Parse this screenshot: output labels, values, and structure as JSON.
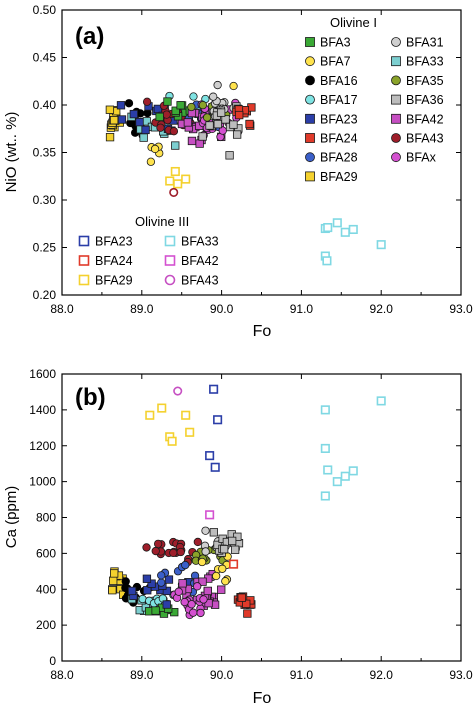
{
  "chart_data": [
    {
      "panel": "(a)",
      "type": "scatter",
      "xlabel": "Fo",
      "ylabel": "NiO (wt.. %)",
      "xlim": [
        88.0,
        93.0
      ],
      "ylim": [
        0.2,
        0.5
      ],
      "xticks": [
        "88.0",
        "89.0",
        "90.0",
        "91.0",
        "92.0",
        "93.0"
      ],
      "yticks": [
        "0.20",
        "0.25",
        "0.30",
        "0.35",
        "0.40",
        "0.45",
        "0.50"
      ],
      "legend_groups": [
        {
          "title": "Olivine I",
          "placement": "top-right",
          "entries": [
            {
              "name": "BFA3",
              "marker": "square",
              "fill": "#3aa935",
              "stroke": "#1a1a1a"
            },
            {
              "name": "BFA7",
              "marker": "circle",
              "fill": "#ffe34d",
              "stroke": "#1a1a1a"
            },
            {
              "name": "BFA16",
              "marker": "circle",
              "fill": "#000000",
              "stroke": "#000000"
            },
            {
              "name": "BFA17",
              "marker": "circle",
              "fill": "#7fe3e3",
              "stroke": "#1a1a1a"
            },
            {
              "name": "BFA23",
              "marker": "square",
              "fill": "#2b3ea8",
              "stroke": "#1a1a1a"
            },
            {
              "name": "BFA24",
              "marker": "square",
              "fill": "#e03a2a",
              "stroke": "#1a1a1a"
            },
            {
              "name": "BFA28",
              "marker": "circle",
              "fill": "#3b5fc9",
              "stroke": "#1a1a1a"
            },
            {
              "name": "BFA29",
              "marker": "square",
              "fill": "#f4d12e",
              "stroke": "#1a1a1a"
            },
            {
              "name": "BFA31",
              "marker": "circle",
              "fill": "#cfcfcf",
              "stroke": "#1a1a1a"
            },
            {
              "name": "BFA33",
              "marker": "square",
              "fill": "#7ccfd0",
              "stroke": "#1a1a1a"
            },
            {
              "name": "BFA35",
              "marker": "circle",
              "fill": "#8aa32a",
              "stroke": "#1a1a1a"
            },
            {
              "name": "BFA36",
              "marker": "square",
              "fill": "#bdbdbd",
              "stroke": "#1a1a1a"
            },
            {
              "name": "BFA42",
              "marker": "square",
              "fill": "#c64fc2",
              "stroke": "#1a1a1a"
            },
            {
              "name": "BFA43",
              "marker": "circle",
              "fill": "#9e1e2a",
              "stroke": "#1a1a1a"
            },
            {
              "name": "BFAx",
              "marker": "circle",
              "fill": "#d451d0",
              "stroke": "#1a1a1a"
            }
          ]
        },
        {
          "title": "Olivine III",
          "placement": "bottom-left",
          "entries": [
            {
              "name": "BFA23",
              "marker": "open-square",
              "stroke": "#2b3ea8"
            },
            {
              "name": "BFA24",
              "marker": "open-square",
              "stroke": "#e03a2a"
            },
            {
              "name": "BFA29",
              "marker": "open-square",
              "stroke": "#f4d12e"
            },
            {
              "name": "BFA33",
              "marker": "open-square",
              "stroke": "#7fd8e3"
            },
            {
              "name": "BFA42",
              "marker": "open-square",
              "stroke": "#d451d0"
            },
            {
              "name": "BFA43",
              "marker": "open-circle",
              "stroke": "#c64fc2"
            }
          ]
        }
      ],
      "clusters": [
        {
          "series": "BFA29",
          "center": [
            88.65,
            0.381
          ],
          "spread": [
            0.08,
            0.012
          ],
          "n": 16
        },
        {
          "series": "BFA16",
          "center": [
            88.95,
            0.381
          ],
          "spread": [
            0.18,
            0.014
          ],
          "n": 10
        },
        {
          "series": "BFA7",
          "center": [
            89.2,
            0.352
          ],
          "spread": [
            0.12,
            0.01
          ],
          "n": 5
        },
        {
          "series": "BFA33",
          "center": [
            89.15,
            0.378
          ],
          "spread": [
            0.22,
            0.015
          ],
          "n": 14
        },
        {
          "series": "BFA17",
          "center": [
            89.45,
            0.395
          ],
          "spread": [
            0.3,
            0.01
          ],
          "n": 14
        },
        {
          "series": "BFA23",
          "center": [
            89.2,
            0.389
          ],
          "spread": [
            0.3,
            0.012
          ],
          "n": 12
        },
        {
          "series": "BFA43",
          "center": [
            89.35,
            0.387
          ],
          "spread": [
            0.22,
            0.013
          ],
          "n": 18
        },
        {
          "series": "BFA3",
          "center": [
            89.55,
            0.386
          ],
          "spread": [
            0.25,
            0.011
          ],
          "n": 10
        },
        {
          "series": "BFA28",
          "center": [
            89.7,
            0.384
          ],
          "spread": [
            0.2,
            0.012
          ],
          "n": 10
        },
        {
          "series": "BFA42",
          "center": [
            89.75,
            0.384
          ],
          "spread": [
            0.22,
            0.013
          ],
          "n": 22
        },
        {
          "series": "BFAx",
          "center": [
            89.9,
            0.386
          ],
          "spread": [
            0.2,
            0.013
          ],
          "n": 20
        },
        {
          "series": "BFA35",
          "center": [
            89.85,
            0.394
          ],
          "spread": [
            0.15,
            0.01
          ],
          "n": 8
        },
        {
          "series": "BFA31",
          "center": [
            89.95,
            0.398
          ],
          "spread": [
            0.2,
            0.01
          ],
          "n": 12
        },
        {
          "series": "BFA36",
          "center": [
            90.0,
            0.384
          ],
          "spread": [
            0.2,
            0.014
          ],
          "n": 14
        },
        {
          "series": "BFA24",
          "center": [
            90.28,
            0.392
          ],
          "spread": [
            0.08,
            0.008
          ],
          "n": 12
        }
      ],
      "points": [
        {
          "series": "BFA7",
          "x": 89.35,
          "y": 0.32
        },
        {
          "series": "BFA7",
          "x": 89.45,
          "y": 0.317
        },
        {
          "series": "BFA7",
          "x": 89.55,
          "y": 0.322
        },
        {
          "series": "BFA7",
          "x": 89.42,
          "y": 0.33
        },
        {
          "series": "BFA43",
          "x": 89.4,
          "y": 0.308
        },
        {
          "series": "BFA29",
          "x": 88.6,
          "y": 0.395
        },
        {
          "series": "BFA24",
          "x": 90.35,
          "y": 0.38
        },
        {
          "series": "BFA36",
          "x": 90.1,
          "y": 0.347
        },
        {
          "series": "BFA31",
          "x": 89.95,
          "y": 0.421
        },
        {
          "series": "BFA7",
          "x": 90.15,
          "y": 0.42
        },
        {
          "series": "BFA33",
          "x": 91.3,
          "y": 0.27
        },
        {
          "series": "BFA33",
          "x": 91.33,
          "y": 0.271
        },
        {
          "series": "BFA33",
          "x": 91.45,
          "y": 0.276
        },
        {
          "series": "BFA33",
          "x": 91.55,
          "y": 0.266
        },
        {
          "series": "BFA33",
          "x": 91.65,
          "y": 0.269
        },
        {
          "series": "BFA33",
          "x": 91.3,
          "y": 0.241
        },
        {
          "series": "BFA33",
          "x": 91.32,
          "y": 0.236
        },
        {
          "series": "BFA33",
          "x": 92.0,
          "y": 0.253
        }
      ]
    },
    {
      "panel": "(b)",
      "type": "scatter",
      "xlabel": "Fo",
      "ylabel": "Ca (ppm)",
      "xlim": [
        88.0,
        93.0
      ],
      "ylim": [
        0,
        1600
      ],
      "xticks": [
        "88.0",
        "89.0",
        "90.0",
        "91.0",
        "92.0",
        "93.0"
      ],
      "yticks": [
        "0",
        "200",
        "400",
        "600",
        "800",
        "1000",
        "1200",
        "1400",
        "1600"
      ],
      "clusters": [
        {
          "series": "BFA29",
          "center": [
            88.7,
            450
          ],
          "spread": [
            0.1,
            50
          ],
          "n": 14
        },
        {
          "series": "BFA16",
          "center": [
            88.95,
            380
          ],
          "spread": [
            0.2,
            55
          ],
          "n": 14
        },
        {
          "series": "BFA33",
          "center": [
            89.05,
            310
          ],
          "spread": [
            0.2,
            45
          ],
          "n": 12
        },
        {
          "series": "BFA17",
          "center": [
            89.15,
            330
          ],
          "spread": [
            0.15,
            40
          ],
          "n": 8
        },
        {
          "series": "BFA3",
          "center": [
            89.3,
            285
          ],
          "spread": [
            0.12,
            25
          ],
          "n": 8
        },
        {
          "series": "BFA23",
          "center": [
            89.3,
            400
          ],
          "spread": [
            0.3,
            60
          ],
          "n": 12
        },
        {
          "series": "BFA43",
          "center": [
            89.4,
            620
          ],
          "spread": [
            0.25,
            55
          ],
          "n": 22
        },
        {
          "series": "BFA28",
          "center": [
            89.55,
            470
          ],
          "spread": [
            0.25,
            60
          ],
          "n": 10
        },
        {
          "series": "BFA42",
          "center": [
            89.75,
            380
          ],
          "spread": [
            0.2,
            70
          ],
          "n": 24
        },
        {
          "series": "BFAx",
          "center": [
            89.65,
            330
          ],
          "spread": [
            0.15,
            60
          ],
          "n": 18
        },
        {
          "series": "BFA35",
          "center": [
            89.85,
            570
          ],
          "spread": [
            0.15,
            45
          ],
          "n": 12
        },
        {
          "series": "BFA7",
          "center": [
            89.95,
            520
          ],
          "spread": [
            0.12,
            45
          ],
          "n": 8
        },
        {
          "series": "BFA31",
          "center": [
            89.98,
            640
          ],
          "spread": [
            0.18,
            50
          ],
          "n": 16
        },
        {
          "series": "BFA36",
          "center": [
            90.05,
            650
          ],
          "spread": [
            0.15,
            55
          ],
          "n": 14
        },
        {
          "series": "BFA24",
          "center": [
            90.28,
            320
          ],
          "spread": [
            0.08,
            45
          ],
          "n": 14
        }
      ],
      "points": [
        {
          "series": "BFA29",
          "x": 89.1,
          "y": 1370
        },
        {
          "series": "BFA29",
          "x": 89.25,
          "y": 1410
        },
        {
          "series": "BFA29",
          "x": 89.55,
          "y": 1370
        },
        {
          "series": "BFA29",
          "x": 89.35,
          "y": 1250
        },
        {
          "series": "BFA29",
          "x": 89.38,
          "y": 1225
        },
        {
          "series": "BFA29",
          "x": 89.6,
          "y": 1275
        },
        {
          "series": "BFA43",
          "x": 89.45,
          "y": 1505
        },
        {
          "series": "BFA23",
          "x": 89.9,
          "y": 1515
        },
        {
          "series": "BFA23",
          "x": 89.95,
          "y": 1345
        },
        {
          "series": "BFA23",
          "x": 89.85,
          "y": 1145
        },
        {
          "series": "BFA23",
          "x": 89.92,
          "y": 1080
        },
        {
          "series": "BFA42",
          "x": 89.85,
          "y": 815
        },
        {
          "series": "BFA24",
          "x": 90.15,
          "y": 540
        },
        {
          "series": "BFA33",
          "x": 91.3,
          "y": 1400
        },
        {
          "series": "BFA33",
          "x": 91.3,
          "y": 1185
        },
        {
          "series": "BFA33",
          "x": 91.33,
          "y": 1065
        },
        {
          "series": "BFA33",
          "x": 91.45,
          "y": 1000
        },
        {
          "series": "BFA33",
          "x": 91.55,
          "y": 1030
        },
        {
          "series": "BFA33",
          "x": 91.65,
          "y": 1060
        },
        {
          "series": "BFA33",
          "x": 91.3,
          "y": 920
        },
        {
          "series": "BFA33",
          "x": 92.0,
          "y": 1450
        }
      ]
    }
  ]
}
